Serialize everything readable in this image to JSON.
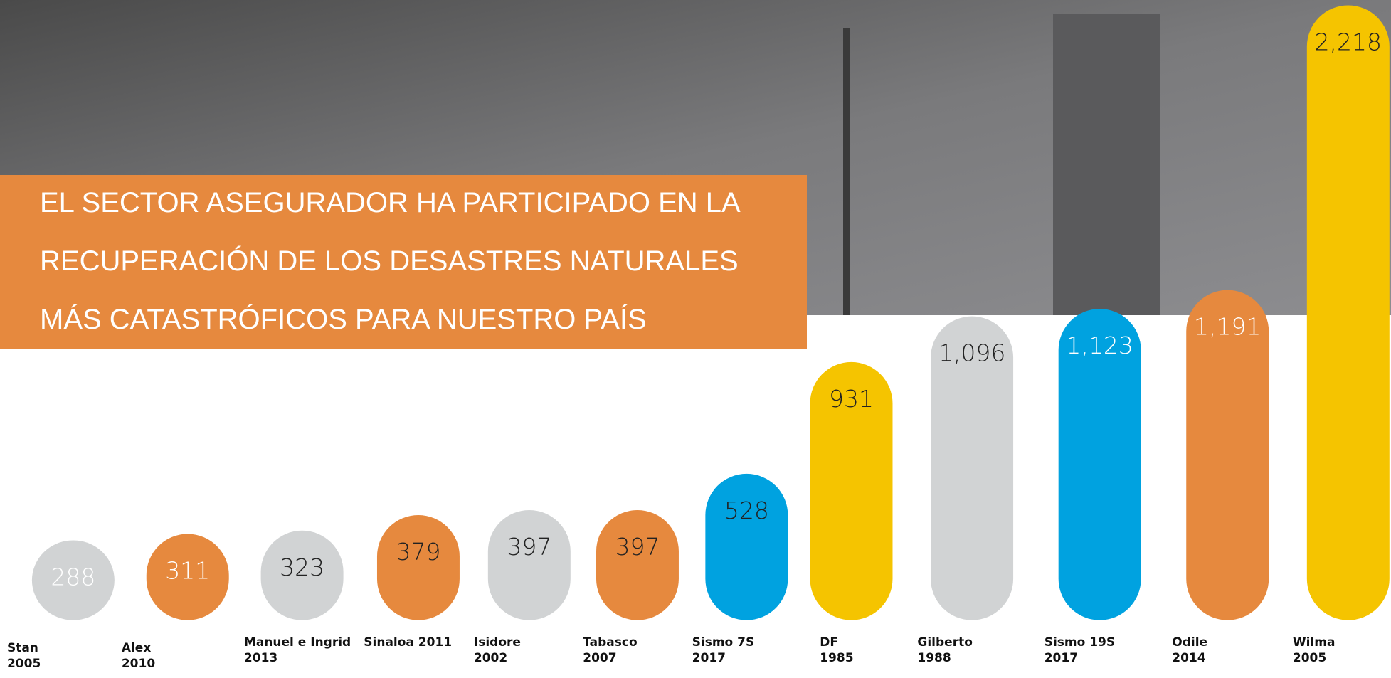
{
  "chart_data": {
    "type": "bar",
    "title": [
      "EL SECTOR ASEGURADOR HA PARTICIPADO EN LA",
      "RECUPERACIÓN DE LOS DESASTRES NATURALES",
      "MÁS CATASTRÓFICOS PARA NUESTRO PAÍS"
    ],
    "categories": [
      [
        "Stan",
        "2005"
      ],
      [
        "Alex",
        "2010"
      ],
      [
        "Manuel e Ingrid",
        "2013"
      ],
      [
        "Sinaloa 2011"
      ],
      [
        "Isidore",
        "2002"
      ],
      [
        "Tabasco",
        "2007"
      ],
      [
        "Sismo 7S",
        "2017"
      ],
      [
        "DF",
        "1985"
      ],
      [
        "Gilberto",
        "1988"
      ],
      [
        "Sismo 19S",
        "2017"
      ],
      [
        "Odile",
        "2014"
      ],
      [
        "Wilma",
        "2005"
      ]
    ],
    "values": [
      288,
      311,
      323,
      379,
      397,
      397,
      528,
      931,
      1096,
      1123,
      1191,
      2218
    ],
    "value_labels": [
      "288",
      "311",
      "323",
      "379",
      "397",
      "397",
      "528",
      "931",
      "1,096",
      "1,123",
      "1,191",
      "2,218"
    ],
    "colors": [
      "#d1d3d4",
      "#e6893e",
      "#d1d3d4",
      "#e6893e",
      "#d1d3d4",
      "#e6893e",
      "#00a2e0",
      "#f5c400",
      "#d1d3d4",
      "#00a2e0",
      "#e6893e",
      "#f5c400"
    ],
    "label_colors": [
      "#ffffff",
      "#ffffff",
      "#222222",
      "#222222",
      "#222222",
      "#222222",
      "#222222",
      "#222222",
      "#222222",
      "#ffffff",
      "#ffffff",
      "#222222"
    ]
  }
}
